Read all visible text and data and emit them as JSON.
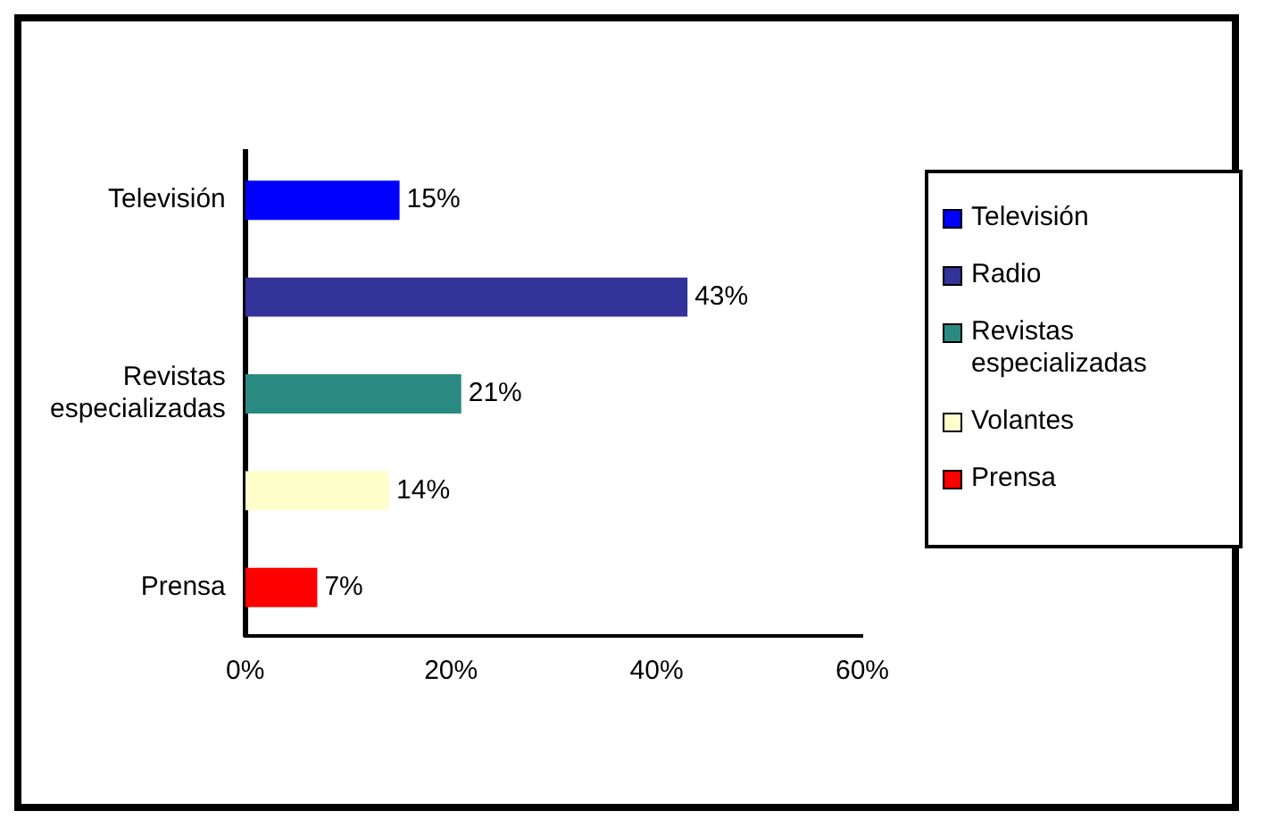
{
  "chart_data": {
    "type": "bar",
    "orientation": "horizontal",
    "categories": [
      "Televisión",
      null,
      "Revistas especializadas",
      null,
      "Prensa"
    ],
    "series": [
      {
        "name": "Televisión",
        "color": "#0000ff",
        "values": [
          15,
          null,
          null,
          null,
          null
        ],
        "value_labels": [
          "15%",
          null,
          null,
          null,
          null
        ]
      },
      {
        "name": "Radio",
        "color": "#333399",
        "values": [
          null,
          43,
          null,
          null,
          null
        ],
        "value_labels": [
          null,
          "43%",
          null,
          null,
          null
        ]
      },
      {
        "name": "Revistas especializadas",
        "color": "#2a8a82",
        "values": [
          null,
          null,
          21,
          null,
          null
        ],
        "value_labels": [
          null,
          null,
          "21%",
          null,
          null
        ]
      },
      {
        "name": "Volantes",
        "color": "#ffffcc",
        "values": [
          null,
          null,
          null,
          14,
          null
        ],
        "value_labels": [
          null,
          null,
          null,
          "14%",
          null
        ]
      },
      {
        "name": "Prensa",
        "color": "#ff0000",
        "values": [
          null,
          null,
          null,
          null,
          7
        ],
        "value_labels": [
          null,
          null,
          null,
          null,
          "7%"
        ]
      }
    ],
    "xlim": [
      0,
      60
    ],
    "xticks": [
      {
        "value": 0,
        "label": "0%"
      },
      {
        "value": 20,
        "label": "20%"
      },
      {
        "value": 40,
        "label": "40%"
      },
      {
        "value": 60,
        "label": "60%"
      }
    ],
    "grid": false,
    "legend": "right"
  }
}
